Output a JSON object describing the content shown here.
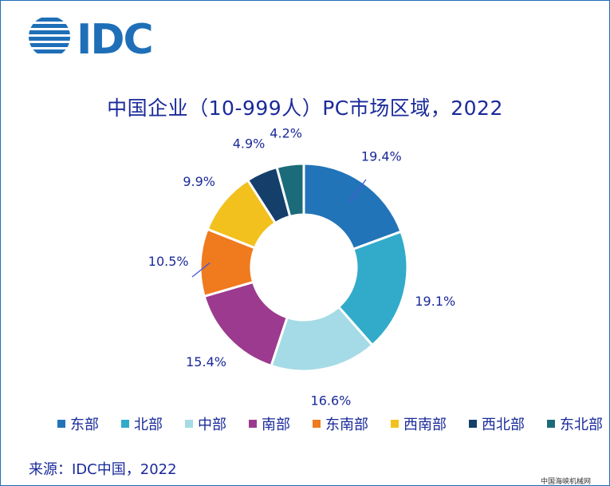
{
  "logo": {
    "text": "IDC",
    "color": "#1e6fb8"
  },
  "chart_data": {
    "type": "pie",
    "title": "中国企业（10-999人）PC市场区域，2022",
    "slices": [
      {
        "name": "东部",
        "value": 19.4,
        "label": "19.4%",
        "color": "#2274b8"
      },
      {
        "name": "北部",
        "value": 19.1,
        "label": "19.1%",
        "color": "#31abc9"
      },
      {
        "name": "中部",
        "value": 16.6,
        "label": "16.6%",
        "color": "#a5dbe6"
      },
      {
        "name": "南部",
        "value": 15.4,
        "label": "15.4%",
        "color": "#9b3a8e"
      },
      {
        "name": "东南部",
        "value": 10.5,
        "label": "10.5%",
        "color": "#f07a1e"
      },
      {
        "name": "西南部",
        "value": 9.9,
        "label": "9.9%",
        "color": "#f2c11d"
      },
      {
        "name": "西北部",
        "value": 4.9,
        "label": "4.9%",
        "color": "#153f6b"
      },
      {
        "name": "东北部",
        "value": 4.2,
        "label": "4.2%",
        "color": "#1c6b7a"
      }
    ],
    "legend_position": "bottom",
    "donut": true
  },
  "source": "来源：IDC中国，2022",
  "watermark": "中国海峡机械网"
}
